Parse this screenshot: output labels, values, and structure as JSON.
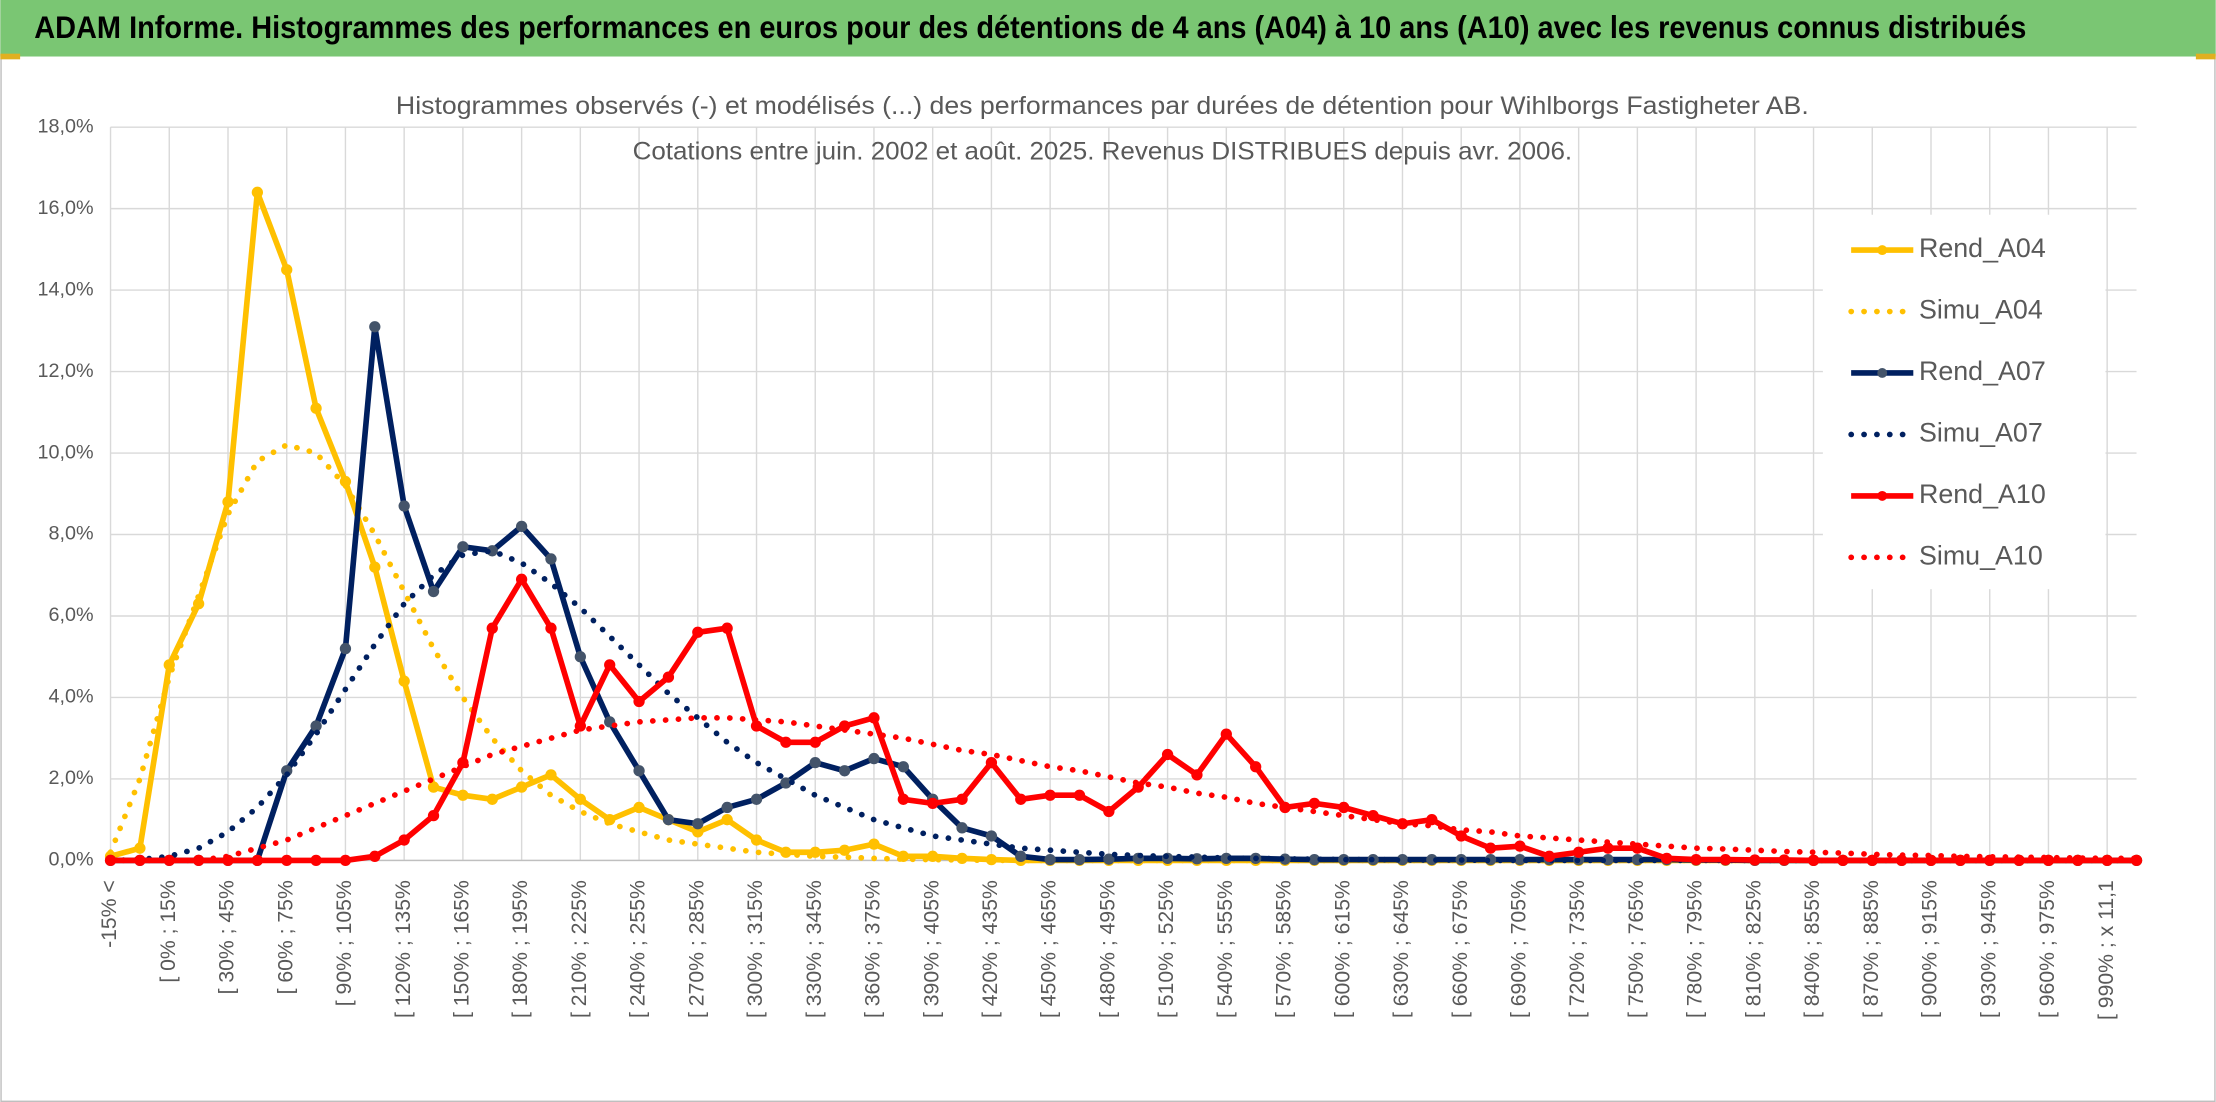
{
  "chart_data": {
    "type": "line",
    "title": "ADAM Informe. Histogrammes des performances en euros pour des détentions de 4 ans (A04) à 10 ans (A10) avec les revenus connus distribués",
    "subtitle": [
      "Histogrammes observés (-) et modélisés (...) des performances par durées de détention pour Wihlborgs Fastigheter AB.",
      "Cotations entre juin. 2002 et août. 2025. Revenus DISTRIBUES depuis avr. 2006."
    ],
    "categories": [
      "-15% <",
      null,
      "[ 0% ; 15%",
      null,
      "[ 30% ; 45%",
      null,
      "[ 60% ; 75%",
      null,
      "[ 90% ; 105%",
      null,
      "[ 120% ; 135%",
      null,
      "[ 150% ; 165%",
      null,
      "[ 180% ; 195%",
      null,
      "[ 210% ; 225%",
      null,
      "[ 240% ; 255%",
      null,
      "[ 270% ; 285%",
      null,
      "[ 300% ; 315%",
      null,
      "[ 330% ; 345%",
      null,
      "[ 360% ; 375%",
      null,
      "[ 390% ; 405%",
      null,
      "[ 420% ; 435%",
      null,
      "[ 450% ; 465%",
      null,
      "[ 480% ; 495%",
      null,
      "[ 510% ; 525%",
      null,
      "[ 540% ; 555%",
      null,
      "[ 570% ; 585%",
      null,
      "[ 600% ; 615%",
      null,
      "[ 630% ; 645%",
      null,
      "[ 660% ; 675%",
      null,
      "[ 690% ; 705%",
      null,
      "[ 720% ; 735%",
      null,
      "[ 750% ; 765%",
      null,
      "[ 780% ; 795%",
      null,
      "[ 810% ; 825%",
      null,
      "[ 840% ; 855%",
      null,
      "[ 870% ; 885%",
      null,
      "[ 900% ; 915%",
      null,
      "[ 930% ; 945%",
      null,
      "[ 960% ; 975%",
      null,
      "[ 990% ; x 11,1",
      null
    ],
    "series": [
      {
        "name": "Rend_A04",
        "color": "#ffc000",
        "dash": "solid",
        "marker": true,
        "marker_color": "#ffc000",
        "values": [
          0.1,
          0.3,
          4.8,
          6.3,
          8.8,
          16.4,
          14.5,
          11.1,
          9.3,
          7.2,
          4.4,
          1.8,
          1.6,
          1.5,
          1.8,
          2.1,
          1.5,
          1.0,
          1.3,
          1.0,
          0.7,
          1.0,
          0.5,
          0.2,
          0.2,
          0.25,
          0.4,
          0.1,
          0.1,
          0.05,
          0.02,
          0,
          0,
          0,
          0,
          0,
          0,
          0,
          0,
          0,
          0,
          0,
          0,
          0,
          0,
          0,
          0,
          0,
          0,
          0,
          0,
          0,
          0,
          0,
          0,
          0,
          0,
          0,
          0,
          0,
          0,
          0,
          0,
          0,
          0,
          0,
          0,
          0,
          0,
          0
        ]
      },
      {
        "name": "Simu_A04",
        "color": "#ffc000",
        "dash": "dot",
        "marker": false,
        "values": [
          0.2,
          2.0,
          4.5,
          6.5,
          8.5,
          9.8,
          10.2,
          10.0,
          9.2,
          8.0,
          6.6,
          5.2,
          4.0,
          3.0,
          2.2,
          1.6,
          1.2,
          0.9,
          0.7,
          0.5,
          0.4,
          0.3,
          0.2,
          0.15,
          0.1,
          0.08,
          0.05,
          0.03,
          0.02,
          0.01,
          0,
          0,
          0,
          0,
          0,
          0,
          0,
          0,
          0,
          0,
          0,
          0,
          0,
          0,
          0,
          0,
          0,
          0,
          0,
          0,
          0,
          0,
          0,
          0,
          0,
          0,
          0,
          0,
          0,
          0,
          0,
          0,
          0,
          0,
          0,
          0,
          0,
          0,
          0,
          0
        ]
      },
      {
        "name": "Rend_A07",
        "color": "#002060",
        "dash": "solid",
        "marker": true,
        "marker_color": "#44546a",
        "values": [
          0,
          0,
          0,
          0,
          0,
          0,
          2.2,
          3.3,
          5.2,
          13.1,
          8.7,
          6.6,
          7.7,
          7.6,
          8.2,
          7.4,
          5.0,
          3.4,
          2.2,
          1.0,
          0.9,
          1.3,
          1.5,
          1.9,
          2.4,
          2.2,
          2.5,
          2.3,
          1.5,
          0.8,
          0.6,
          0.1,
          0.02,
          0.02,
          0.03,
          0.05,
          0.05,
          0.04,
          0.05,
          0.05,
          0.03,
          0.02,
          0.02,
          0.02,
          0.02,
          0.02,
          0.02,
          0.02,
          0.02,
          0.02,
          0.02,
          0.02,
          0.02,
          0.02,
          0.01,
          0.01,
          0,
          0,
          0,
          0,
          0,
          0,
          0,
          0,
          0,
          0,
          0,
          0,
          0,
          0
        ]
      },
      {
        "name": "Simu_A07",
        "color": "#002060",
        "dash": "dot",
        "marker": false,
        "values": [
          0,
          0.02,
          0.1,
          0.3,
          0.7,
          1.3,
          2.1,
          3.1,
          4.2,
          5.3,
          6.3,
          7.0,
          7.5,
          7.6,
          7.3,
          6.8,
          6.2,
          5.5,
          4.8,
          4.1,
          3.5,
          2.9,
          2.4,
          2.0,
          1.6,
          1.3,
          1.0,
          0.8,
          0.6,
          0.5,
          0.4,
          0.3,
          0.25,
          0.2,
          0.15,
          0.12,
          0.1,
          0.08,
          0.06,
          0.05,
          0.04,
          0.03,
          0.02,
          0.02,
          0.01,
          0.01,
          0.01,
          0,
          0,
          0,
          0,
          0,
          0,
          0,
          0,
          0,
          0,
          0,
          0,
          0,
          0,
          0,
          0,
          0,
          0,
          0,
          0,
          0,
          0,
          0
        ]
      },
      {
        "name": "Rend_A10",
        "color": "#ff0000",
        "dash": "solid",
        "marker": true,
        "marker_color": "#ff0000",
        "values": [
          0,
          0,
          0,
          0,
          0,
          0,
          0,
          0,
          0,
          0.1,
          0.5,
          1.1,
          2.4,
          5.7,
          6.9,
          5.7,
          3.3,
          4.8,
          3.9,
          4.5,
          5.6,
          5.7,
          3.3,
          2.9,
          2.9,
          3.3,
          3.5,
          1.5,
          1.4,
          1.5,
          2.4,
          1.5,
          1.6,
          1.6,
          1.2,
          1.8,
          2.6,
          2.1,
          3.1,
          2.3,
          1.3,
          1.4,
          1.3,
          1.1,
          0.9,
          1.0,
          0.6,
          0.3,
          0.35,
          0.1,
          0.2,
          0.3,
          0.3,
          0.05,
          0.02,
          0.02,
          0.01,
          0.01,
          0,
          0,
          0,
          0,
          0,
          0,
          0,
          0,
          0,
          0,
          0,
          0
        ]
      },
      {
        "name": "Simu_A10",
        "color": "#ff0000",
        "dash": "dot",
        "marker": false,
        "values": [
          0,
          0,
          0,
          0,
          0.1,
          0.3,
          0.5,
          0.8,
          1.1,
          1.4,
          1.7,
          2.0,
          2.3,
          2.6,
          2.8,
          3.0,
          3.2,
          3.3,
          3.4,
          3.45,
          3.5,
          3.5,
          3.45,
          3.4,
          3.3,
          3.2,
          3.1,
          3.0,
          2.85,
          2.7,
          2.6,
          2.45,
          2.3,
          2.2,
          2.05,
          1.9,
          1.8,
          1.65,
          1.55,
          1.4,
          1.3,
          1.2,
          1.1,
          1.0,
          0.9,
          0.85,
          0.75,
          0.7,
          0.6,
          0.55,
          0.5,
          0.45,
          0.4,
          0.35,
          0.3,
          0.28,
          0.25,
          0.22,
          0.2,
          0.18,
          0.15,
          0.13,
          0.12,
          0.1,
          0.09,
          0.08,
          0.07,
          0.06,
          0.05,
          0.05
        ]
      }
    ],
    "ylim": [
      0,
      18
    ],
    "yticks": [
      {
        "value": 0,
        "label": "0,0%"
      },
      {
        "value": 2,
        "label": "2,0%"
      },
      {
        "value": 4,
        "label": "4,0%"
      },
      {
        "value": 6,
        "label": "6,0%"
      },
      {
        "value": 8,
        "label": "8,0%"
      },
      {
        "value": 10,
        "label": "10,0%"
      },
      {
        "value": 12,
        "label": "12,0%"
      },
      {
        "value": 14,
        "label": "14,0%"
      },
      {
        "value": 16,
        "label": "16,0%"
      },
      {
        "value": 18,
        "label": "18,0%"
      }
    ],
    "grid": true,
    "xgrid": true,
    "legend": "right"
  }
}
